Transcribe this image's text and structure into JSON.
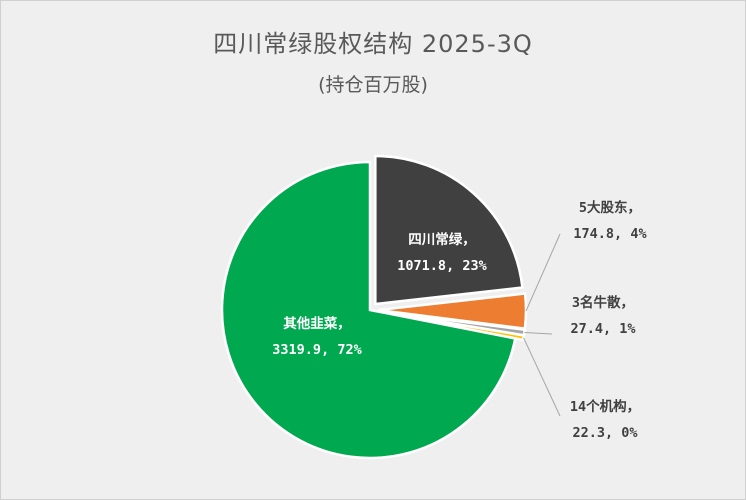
{
  "chart_data": {
    "type": "pie",
    "title": "四川常绿股权结构 2025-3Q",
    "subtitle": "(持仓百万股)",
    "slices": [
      {
        "name": "四川常绿",
        "value": 1071.8,
        "percent": "23%",
        "color": "#404040",
        "label_color": "#ffffff",
        "exploded": true
      },
      {
        "name": "5大股东",
        "value": 174.8,
        "percent": "4%",
        "color": "#ed7d31",
        "label_color": "#404040",
        "exploded": true
      },
      {
        "name": "3名牛散",
        "value": 27.4,
        "percent": "1%",
        "color": "#a5a5a5",
        "label_color": "#404040",
        "exploded": true
      },
      {
        "name": "14个机构",
        "value": 22.3,
        "percent": "0%",
        "color": "#ffc000",
        "label_color": "#404040",
        "exploded": true
      },
      {
        "name": "其他韭菜",
        "value": 3319.9,
        "percent": "72%",
        "color": "#00a84f",
        "label_color": "#ffffff",
        "exploded": false
      }
    ],
    "labels": [
      {
        "line1": "四川常绿，",
        "line2": "1071.8, 23%"
      },
      {
        "line1": "5大股东，",
        "line2": "174.8, 4%"
      },
      {
        "line1": "3名牛散，",
        "line2": "27.4, 1%"
      },
      {
        "line1": "14个机构，",
        "line2": "22.3, 0%"
      },
      {
        "line1": "其他韭菜，",
        "line2": "3319.9, 72%"
      }
    ]
  }
}
